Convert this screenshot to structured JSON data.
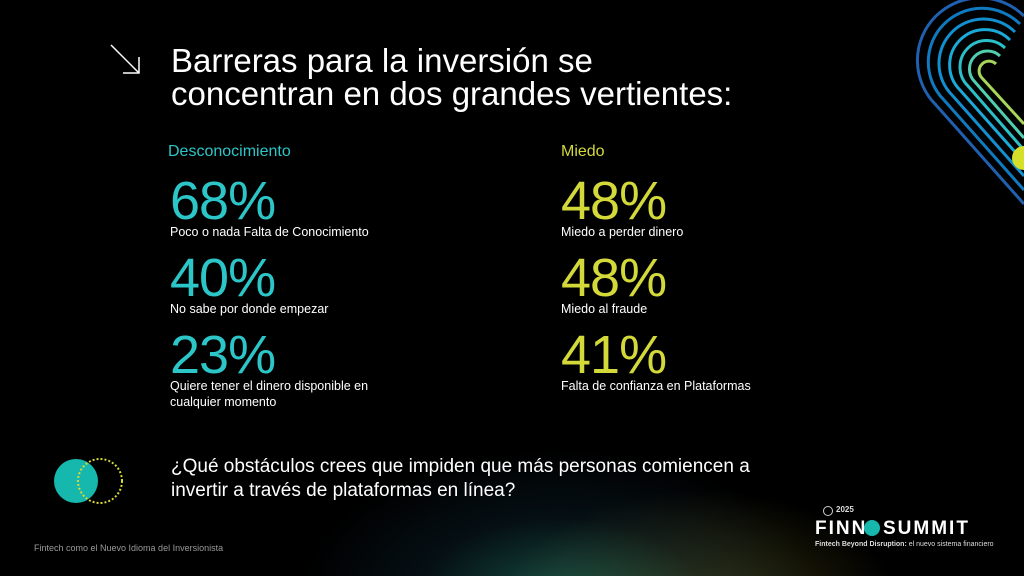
{
  "title": [
    "Barreras para la inversión se",
    "concentran en dos grandes vertientes:"
  ],
  "columns": [
    {
      "heading": "Desconocimiento",
      "stats": [
        {
          "value": "68%",
          "label": "Poco o nada Falta de Conocimiento"
        },
        {
          "value": "40%",
          "label": "No sabe por donde empezar"
        },
        {
          "value": "23%",
          "label": "Quiere tener el dinero disponible en cualquier momento"
        }
      ]
    },
    {
      "heading": "Miedo",
      "stats": [
        {
          "value": "48%",
          "label": "Miedo a perder dinero"
        },
        {
          "value": "48%",
          "label": "Miedo al fraude"
        },
        {
          "value": "41%",
          "label": "Falta de confianza en Plataformas"
        }
      ]
    }
  ],
  "question": [
    "¿Qué obstáculos crees que impiden que más personas comiencen a",
    "invertir a través de plataformas en línea?"
  ],
  "footer": "Fintech como el Nuevo Idioma del Inversionista",
  "logo": {
    "year": "2025",
    "brand_left": "FINN",
    "brand_right": "SUMMIT",
    "tagline_bold": "Fintech Beyond Disruption:",
    "tagline": "el nuevo sistema financiero"
  }
}
